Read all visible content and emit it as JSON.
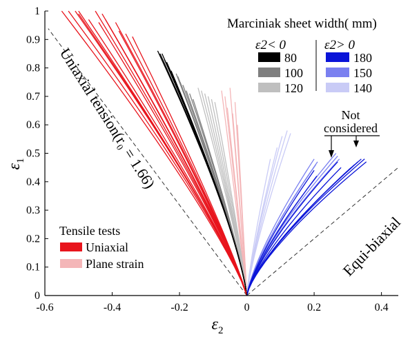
{
  "chart_data": {
    "type": "line",
    "title": "",
    "xlabel": "ε2",
    "ylabel": "ε1",
    "xlim": [
      -0.6,
      0.45
    ],
    "ylim": [
      0,
      1
    ],
    "xticks": [
      "-0.6",
      "-0.4",
      "-0.2",
      "0",
      "0.2",
      "0.4"
    ],
    "yticks": [
      "0",
      "0.1",
      "0.2",
      "0.3",
      "0.4",
      "0.5",
      "0.6",
      "0.7",
      "0.8",
      "0.9",
      "1"
    ],
    "grid": false,
    "reference_lines": [
      {
        "label": "Uniaxial tension(r₀ = 1.66)",
        "slope": -1.59
      },
      {
        "label": "Equi-biaxial",
        "slope": 1.0
      }
    ],
    "annotation": "Not considered",
    "legend_sheet": {
      "title": "Marciniak sheet width( mm)",
      "neg_header": "ε2< 0",
      "pos_header": "ε2> 0",
      "neg_entries": [
        {
          "label": "80",
          "color": "#000000"
        },
        {
          "label": "100",
          "color": "#7f7f7f"
        },
        {
          "label": "120",
          "color": "#bfbfbf"
        }
      ],
      "pos_entries": [
        {
          "label": "180",
          "color": "#0a14d8"
        },
        {
          "label": "150",
          "color": "#7a80f0"
        },
        {
          "label": "140",
          "color": "#c9cbf6"
        }
      ]
    },
    "legend_tensile": {
      "title": "Tensile tests",
      "entries": [
        {
          "label": "Uniaxial",
          "color": "#e8141c"
        },
        {
          "label": "Plane strain",
          "color": "#f4b6b8"
        }
      ]
    },
    "series": [
      {
        "name": "Uniaxial",
        "color": "#e8141c",
        "curves": [
          {
            "end": [
              -0.55,
              1.0
            ],
            "bend": 1.18
          },
          {
            "end": [
              -0.53,
              1.0
            ],
            "bend": 1.18
          },
          {
            "end": [
              -0.51,
              1.0
            ],
            "bend": 1.17
          },
          {
            "end": [
              -0.5,
              0.99
            ],
            "bend": 1.17
          },
          {
            "end": [
              -0.5,
              1.0
            ],
            "bend": 1.16
          },
          {
            "end": [
              -0.47,
              0.97
            ],
            "bend": 1.16
          },
          {
            "end": [
              -0.45,
              1.0
            ],
            "bend": 1.15
          },
          {
            "end": [
              -0.44,
              0.96
            ],
            "bend": 1.15
          },
          {
            "end": [
              -0.43,
              0.99
            ],
            "bend": 1.15
          },
          {
            "end": [
              -0.42,
              0.97
            ],
            "bend": 1.14
          },
          {
            "end": [
              -0.41,
              0.95
            ],
            "bend": 1.14
          },
          {
            "end": [
              -0.39,
              0.96
            ],
            "bend": 1.14
          },
          {
            "end": [
              -0.38,
              0.93
            ],
            "bend": 1.13
          },
          {
            "end": [
              -0.36,
              0.92
            ],
            "bend": 1.13
          },
          {
            "end": [
              -0.34,
              0.91
            ],
            "bend": 1.12
          }
        ]
      },
      {
        "name": "Plane strain",
        "color": "#f4b6b8",
        "curves": [
          {
            "end": [
              -0.075,
              0.72
            ],
            "bend": 1.04
          },
          {
            "end": [
              -0.065,
              0.7
            ],
            "bend": 1.04
          },
          {
            "end": [
              -0.058,
              0.66
            ],
            "bend": 1.04
          },
          {
            "end": [
              -0.05,
              0.73
            ],
            "bend": 1.03
          },
          {
            "end": [
              -0.042,
              0.64
            ],
            "bend": 1.03
          },
          {
            "end": [
              -0.035,
              0.68
            ],
            "bend": 1.03
          },
          {
            "end": [
              -0.028,
              0.6
            ],
            "bend": 1.02
          }
        ]
      },
      {
        "name": "80",
        "color": "#000000",
        "curves": [
          {
            "end": [
              -0.265,
              0.86
            ],
            "bend": 1.28
          },
          {
            "end": [
              -0.258,
              0.85
            ],
            "bend": 1.28
          },
          {
            "end": [
              -0.252,
              0.85
            ],
            "bend": 1.27
          },
          {
            "end": [
              -0.245,
              0.83
            ],
            "bend": 1.27
          },
          {
            "end": [
              -0.238,
              0.82
            ],
            "bend": 1.26
          },
          {
            "end": [
              -0.232,
              0.8
            ],
            "bend": 1.26
          },
          {
            "end": [
              -0.225,
              0.79
            ],
            "bend": 1.25
          }
        ]
      },
      {
        "name": "100",
        "color": "#7f7f7f",
        "curves": [
          {
            "end": [
              -0.21,
              0.78
            ],
            "bend": 1.22
          },
          {
            "end": [
              -0.205,
              0.77
            ],
            "bend": 1.22
          },
          {
            "end": [
              -0.198,
              0.75
            ],
            "bend": 1.21
          },
          {
            "end": [
              -0.19,
              0.74
            ],
            "bend": 1.21
          },
          {
            "end": [
              -0.18,
              0.72
            ],
            "bend": 1.2
          },
          {
            "end": [
              -0.17,
              0.71
            ],
            "bend": 1.2
          },
          {
            "end": [
              -0.16,
              0.69
            ],
            "bend": 1.19
          }
        ]
      },
      {
        "name": "120",
        "color": "#bfbfbf",
        "curves": [
          {
            "end": [
              -0.145,
              0.73
            ],
            "bend": 1.16
          },
          {
            "end": [
              -0.135,
              0.72
            ],
            "bend": 1.16
          },
          {
            "end": [
              -0.125,
              0.71
            ],
            "bend": 1.15
          },
          {
            "end": [
              -0.115,
              0.7
            ],
            "bend": 1.14
          },
          {
            "end": [
              -0.105,
              0.69
            ],
            "bend": 1.14
          },
          {
            "end": [
              -0.095,
              0.68
            ],
            "bend": 1.13
          }
        ]
      },
      {
        "name": "140",
        "color": "#c9cbf6",
        "curves": [
          {
            "end": [
              0.07,
              0.48
            ],
            "bend": 1.22
          },
          {
            "end": [
              0.09,
              0.52
            ],
            "bend": 1.22
          },
          {
            "end": [
              0.105,
              0.56
            ],
            "bend": 1.23
          },
          {
            "end": [
              0.12,
              0.58
            ],
            "bend": 1.23
          },
          {
            "end": [
              0.13,
              0.57
            ],
            "bend": 1.24
          }
        ]
      },
      {
        "name": "150",
        "color": "#7a80f0",
        "curves": [
          {
            "end": [
              0.2,
              0.48
            ],
            "bend": 1.32
          },
          {
            "end": [
              0.205,
              0.46
            ],
            "bend": 1.32
          },
          {
            "end": [
              0.21,
              0.47
            ],
            "bend": 1.32
          },
          {
            "end": [
              0.265,
              0.5
            ],
            "bend": 1.35
          },
          {
            "end": [
              0.27,
              0.49
            ],
            "bend": 1.35
          },
          {
            "end": [
              0.275,
              0.48
            ],
            "bend": 1.35
          }
        ]
      },
      {
        "name": "180",
        "color": "#0a14d8",
        "curves": [
          {
            "end": [
              0.2,
              0.44
            ],
            "bend": 1.3
          },
          {
            "end": [
              0.208,
              0.42
            ],
            "bend": 1.3
          },
          {
            "end": [
              0.27,
              0.47
            ],
            "bend": 1.33
          },
          {
            "end": [
              0.28,
              0.45
            ],
            "bend": 1.33
          },
          {
            "end": [
              0.31,
              0.45
            ],
            "bend": 1.34
          },
          {
            "end": [
              0.32,
              0.46
            ],
            "bend": 1.34
          },
          {
            "end": [
              0.33,
              0.47
            ],
            "bend": 1.35
          },
          {
            "end": [
              0.34,
              0.48
            ],
            "bend": 1.35
          },
          {
            "end": [
              0.35,
              0.48
            ],
            "bend": 1.36
          },
          {
            "end": [
              0.355,
              0.47
            ],
            "bend": 1.36
          }
        ]
      }
    ]
  }
}
